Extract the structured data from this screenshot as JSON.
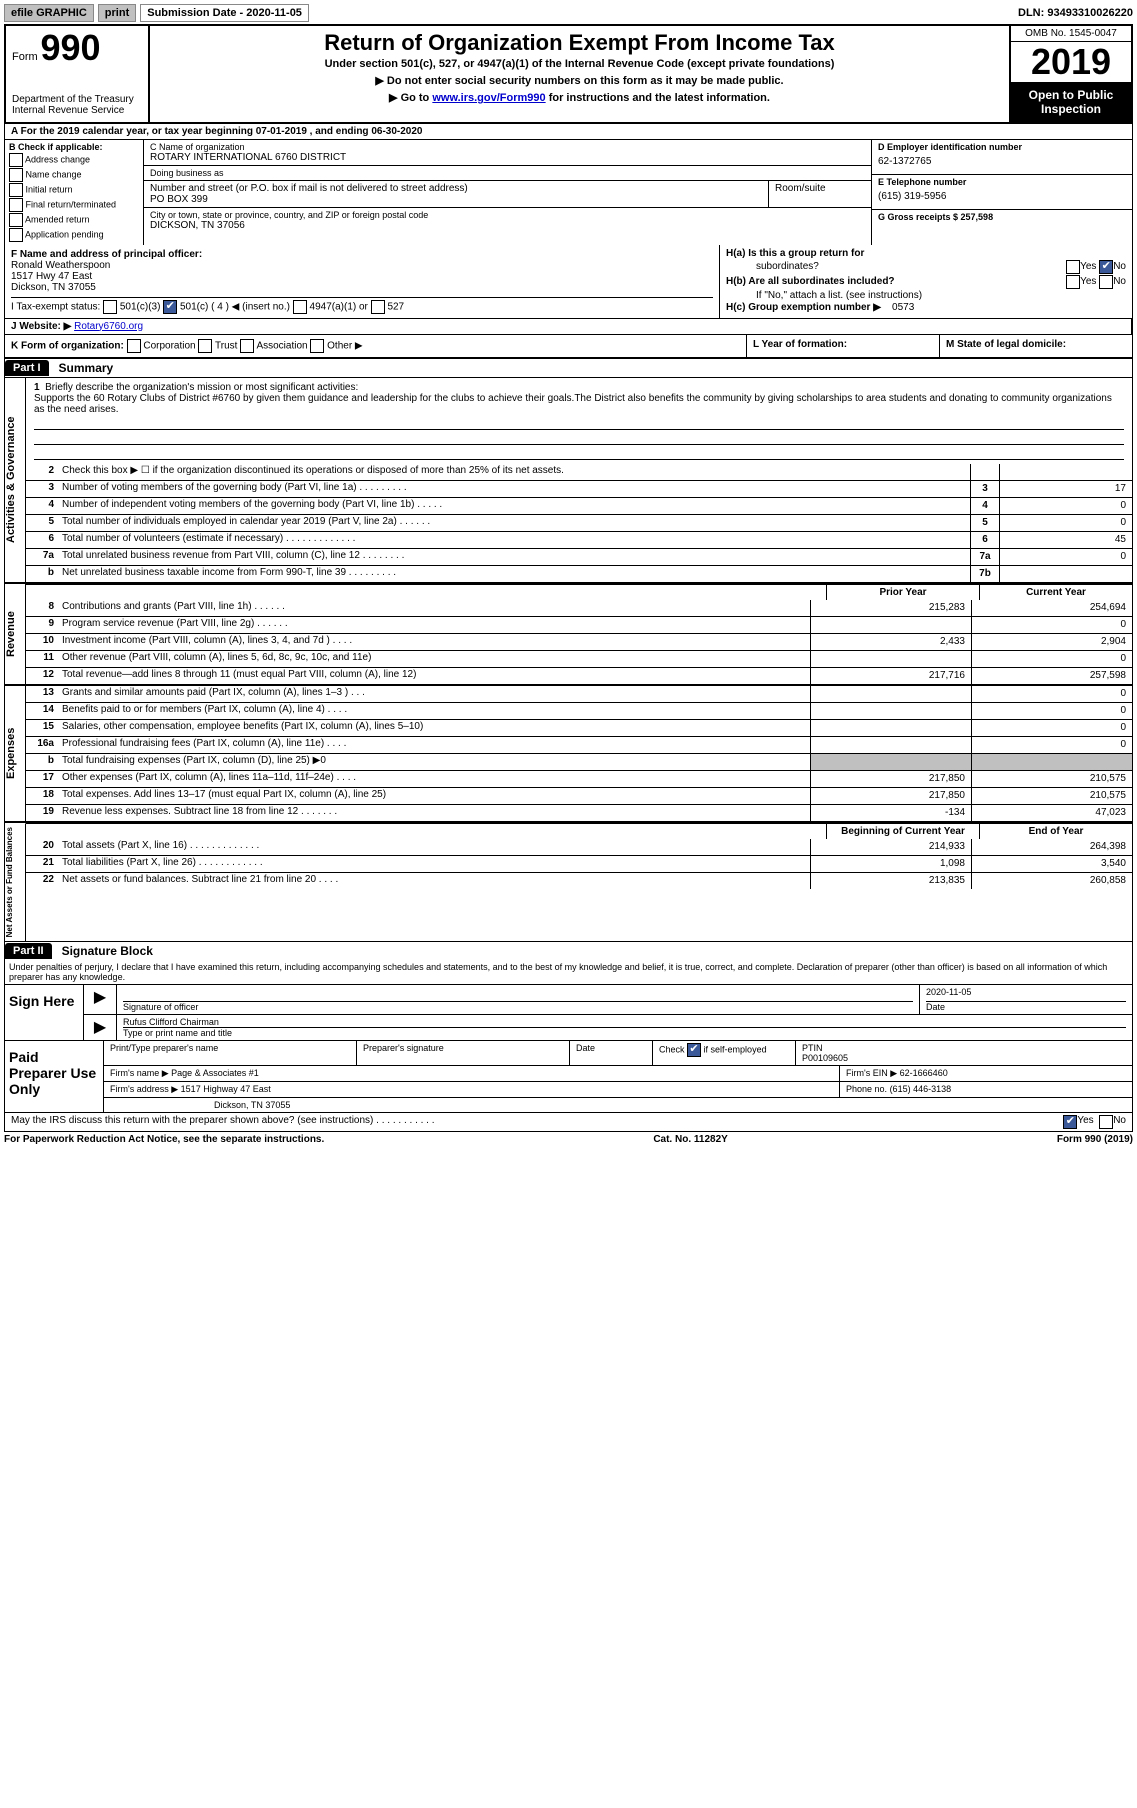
{
  "top_bar": {
    "efile": "efile GRAPHIC",
    "print": "print",
    "submission_label": "Submission Date - 2020-11-05",
    "dln_label": "DLN: 93493310026220"
  },
  "header": {
    "form_label": "Form",
    "form_number": "990",
    "title": "Return of Organization Exempt From Income Tax",
    "sub1": "Under section 501(c), 527, or 4947(a)(1) of the Internal Revenue Code (except private foundations)",
    "sub2": "▶ Do not enter social security numbers on this form as it may be made public.",
    "sub3_pre": "▶ Go to ",
    "sub3_link": "www.irs.gov/Form990",
    "sub3_post": " for instructions and the latest information.",
    "dept": "Department of the Treasury\nInternal Revenue Service",
    "omb": "OMB No. 1545-0047",
    "year": "2019",
    "otp1": "Open to Public",
    "otp2": "Inspection"
  },
  "row_a": "A   For the 2019 calendar year, or tax year beginning 07-01-2019     , and ending 06-30-2020",
  "b": {
    "hdr": "B Check if applicable:",
    "opts": [
      "Address change",
      "Name change",
      "Initial return",
      "Final return/terminated",
      "Amended return",
      "Application pending"
    ]
  },
  "c": {
    "name_lbl": "C Name of organization",
    "name": "ROTARY INTERNATIONAL 6760 DISTRICT",
    "dba_lbl": "Doing business as",
    "dba": "",
    "addr_lbl": "Number and street (or P.O. box if mail is not delivered to street address)",
    "room_lbl": "Room/suite",
    "addr": "PO BOX 399",
    "city_lbl": "City or town, state or province, country, and ZIP or foreign postal code",
    "city": "DICKSON, TN  37056"
  },
  "d": {
    "ein_lbl": "D Employer identification number",
    "ein": "62-1372765",
    "tel_lbl": "E Telephone number",
    "tel": "(615) 319-5956",
    "gross_lbl": "G Gross receipts $ 257,598"
  },
  "f": {
    "lbl": "F  Name and address of principal officer:",
    "name": "Ronald Weatherspoon",
    "addr1": "1517 Hwy 47 East",
    "addr2": "Dickson, TN  37055"
  },
  "h": {
    "a_lbl": "H(a)  Is this a group return for",
    "a_lbl2": "subordinates?",
    "b_lbl": "H(b)  Are all subordinates included?",
    "b_note": "If \"No,\" attach a list. (see instructions)",
    "c_lbl": "H(c)  Group exemption number ▶",
    "c_val": "0573",
    "yes": "Yes",
    "no": "No"
  },
  "i": {
    "lbl": "I    Tax-exempt status:",
    "opt1": "501(c)(3)",
    "opt2": "501(c) ( 4 ) ◀ (insert no.)",
    "opt3": "4947(a)(1) or",
    "opt4": "527"
  },
  "j": {
    "lbl": "J    Website: ▶",
    "val": "Rotary6760.org"
  },
  "k": {
    "lbl": "K Form of organization:",
    "opts": [
      "Corporation",
      "Trust",
      "Association",
      "Other ▶"
    ],
    "l_lbl": "L Year of formation:",
    "m_lbl": "M State of legal domicile:"
  },
  "part1": {
    "label": "Part I",
    "title": "Summary"
  },
  "mission": {
    "num": "1",
    "lbl": "Briefly describe the organization's mission or most significant activities:",
    "text": "Supports the 60 Rotary Clubs of District #6760 by given them guidance and leadership for the clubs to achieve their goals.The District also benefits the community by giving scholarships to area students and donating to community organizations as the need arises."
  },
  "gov_lines": [
    {
      "num": "2",
      "desc": "Check this box ▶ ☐  if the organization discontinued its operations or disposed of more than 25% of its net assets.",
      "box": "",
      "val": ""
    },
    {
      "num": "3",
      "desc": "Number of voting members of the governing body (Part VI, line 1a)  .    .    .    .    .    .    .    .    .",
      "box": "3",
      "val": "17"
    },
    {
      "num": "4",
      "desc": "Number of independent voting members of the governing body (Part VI, line 1b)  .    .    .    .    .",
      "box": "4",
      "val": "0"
    },
    {
      "num": "5",
      "desc": "Total number of individuals employed in calendar year 2019 (Part V, line 2a)  .    .    .    .    .    .",
      "box": "5",
      "val": "0"
    },
    {
      "num": "6",
      "desc": "Total number of volunteers (estimate if necessary)    .    .    .    .    .    .    .    .    .    .    .    .    .",
      "box": "6",
      "val": "45"
    },
    {
      "num": "7a",
      "desc": "Total unrelated business revenue from Part VIII, column (C), line 12   .    .    .    .    .    .    .    .",
      "box": "7a",
      "val": "0"
    },
    {
      "num": "b",
      "desc": "Net unrelated business taxable income from Form 990-T, line 39    .    .    .    .    .    .    .    .    .",
      "box": "7b",
      "val": ""
    }
  ],
  "col_headers": {
    "prior": "Prior Year",
    "current": "Current Year"
  },
  "rev_lines": [
    {
      "num": "8",
      "desc": "Contributions and grants (Part VIII, line 1h)    .    .    .    .    .    .",
      "prior": "215,283",
      "current": "254,694"
    },
    {
      "num": "9",
      "desc": "Program service revenue (Part VIII, line 2g)    .    .    .    .    .    .",
      "prior": "",
      "current": "0"
    },
    {
      "num": "10",
      "desc": "Investment income (Part VIII, column (A), lines 3, 4, and 7d )    .    .    .    .",
      "prior": "2,433",
      "current": "2,904"
    },
    {
      "num": "11",
      "desc": "Other revenue (Part VIII, column (A), lines 5, 6d, 8c, 9c, 10c, and 11e)",
      "prior": "",
      "current": "0"
    },
    {
      "num": "12",
      "desc": "Total revenue—add lines 8 through 11 (must equal Part VIII, column (A), line 12)",
      "prior": "217,716",
      "current": "257,598"
    }
  ],
  "exp_lines": [
    {
      "num": "13",
      "desc": "Grants and similar amounts paid (Part IX, column (A), lines 1–3 )   .    .    .",
      "prior": "",
      "current": "0"
    },
    {
      "num": "14",
      "desc": "Benefits paid to or for members (Part IX, column (A), line 4)   .    .    .    .",
      "prior": "",
      "current": "0"
    },
    {
      "num": "15",
      "desc": "Salaries, other compensation, employee benefits (Part IX, column (A), lines 5–10)",
      "prior": "",
      "current": "0"
    },
    {
      "num": "16a",
      "desc": "Professional fundraising fees (Part IX, column (A), line 11e)   .    .    .    .",
      "prior": "",
      "current": "0"
    },
    {
      "num": "b",
      "desc": "Total fundraising expenses (Part IX, column (D), line 25) ▶0",
      "prior": "shaded",
      "current": "shaded"
    },
    {
      "num": "17",
      "desc": "Other expenses (Part IX, column (A), lines 11a–11d, 11f–24e)   .    .    .    .",
      "prior": "217,850",
      "current": "210,575"
    },
    {
      "num": "18",
      "desc": "Total expenses. Add lines 13–17 (must equal Part IX, column (A), line 25)",
      "prior": "217,850",
      "current": "210,575"
    },
    {
      "num": "19",
      "desc": "Revenue less expenses. Subtract line 18 from line 12  .    .    .    .    .    .    .",
      "prior": "-134",
      "current": "47,023"
    }
  ],
  "na_headers": {
    "begin": "Beginning of Current Year",
    "end": "End of Year"
  },
  "na_lines": [
    {
      "num": "20",
      "desc": "Total assets (Part X, line 16)  .    .    .    .    .    .    .    .    .    .    .    .    .",
      "prior": "214,933",
      "current": "264,398"
    },
    {
      "num": "21",
      "desc": "Total liabilities (Part X, line 26)  .    .    .    .    .    .    .    .    .    .    .    .",
      "prior": "1,098",
      "current": "3,540"
    },
    {
      "num": "22",
      "desc": "Net assets or fund balances. Subtract line 21 from line 20   .    .    .    .",
      "prior": "213,835",
      "current": "260,858"
    }
  ],
  "part2": {
    "label": "Part II",
    "title": "Signature Block"
  },
  "penalties": "Under penalties of perjury, I declare that I have examined this return, including accompanying schedules and statements, and to the best of my knowledge and belief, it is true, correct, and complete. Declaration of preparer (other than officer) is based on all information of which preparer has any knowledge.",
  "sign": {
    "here": "Sign Here",
    "sig_lbl": "Signature of officer",
    "date_lbl": "Date",
    "date": "2020-11-05",
    "name": "Rufus Clifford  Chairman",
    "name_lbl": "Type or print name and title"
  },
  "paid": {
    "title": "Paid Preparer Use Only",
    "r1": {
      "c1": "Print/Type preparer's name",
      "c2": "Preparer's signature",
      "c3": "Date",
      "c4_lbl": "Check",
      "c4_txt": "if self-employed",
      "c5_lbl": "PTIN",
      "c5": "P00109605"
    },
    "r2": {
      "lbl": "Firm's name      ▶",
      "val": "Page & Associates #1",
      "ein_lbl": "Firm's EIN ▶",
      "ein": "62-1666460"
    },
    "r3": {
      "lbl": "Firm's address ▶",
      "val": "1517 Highway 47 East",
      "phone_lbl": "Phone no.",
      "phone": "(615) 446-3138"
    },
    "r4": {
      "val": "Dickson, TN  37055"
    }
  },
  "discuss": {
    "text": "May the IRS discuss this return with the preparer shown above? (see instructions)    .    .    .    .    .    .    .    .    .    .    .",
    "yes": "Yes",
    "no": "No"
  },
  "footer": {
    "left": "For Paperwork Reduction Act Notice, see the separate instructions.",
    "mid": "Cat. No. 11282Y",
    "right": "Form 990 (2019)"
  },
  "vtabs": {
    "gov": "Activities & Governance",
    "rev": "Revenue",
    "exp": "Expenses",
    "na": "Net Assets or Fund Balances"
  }
}
